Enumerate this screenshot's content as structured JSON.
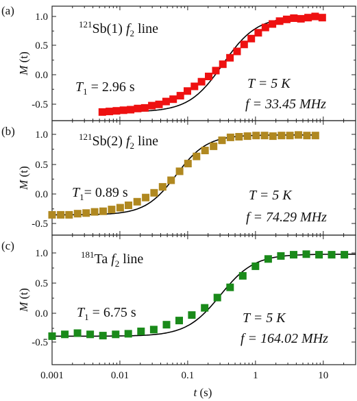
{
  "figure": {
    "xlabel": {
      "italic": "t",
      "rest": " (s)"
    },
    "ylabel": {
      "italic": "M",
      "rest": " (t)"
    }
  },
  "chart_data": [
    {
      "type": "scatter",
      "panel": "(a)",
      "title": {
        "isotope_mass": "121",
        "text": "Sb(1) ",
        "f": "f",
        "sub": "2",
        "suffix": " line"
      },
      "x_scale": "log",
      "xlim": [
        0.001,
        30
      ],
      "ylim": [
        -0.75,
        1.2
      ],
      "yticks": [
        "1.0",
        "0.5",
        "0.0",
        "-0.5"
      ],
      "marker_color": "#ee1111",
      "fit_line": true,
      "annotations": {
        "T1": {
          "label": "T",
          "sub": "1",
          "value": " = 2.96 s"
        },
        "T": "T = 5 K",
        "f": "f = 33.45 MHz"
      },
      "series": [
        {
          "x": [
            0.0055,
            0.007,
            0.0089,
            0.0113,
            0.0144,
            0.0183,
            0.0233,
            0.0296,
            0.0377,
            0.048,
            0.061,
            0.078,
            0.099,
            0.126,
            0.16,
            0.204,
            0.26,
            0.33,
            0.42,
            0.535,
            0.68,
            0.866,
            1.1,
            1.4,
            1.78,
            2.27,
            2.89,
            3.68,
            4.68,
            5.96,
            7.58,
            9.65
          ],
          "y": [
            -0.64,
            -0.63,
            -0.62,
            -0.61,
            -0.6,
            -0.58,
            -0.57,
            -0.53,
            -0.51,
            -0.46,
            -0.42,
            -0.36,
            -0.28,
            -0.2,
            -0.12,
            -0.03,
            0.07,
            0.18,
            0.29,
            0.4,
            0.52,
            0.62,
            0.72,
            0.81,
            0.87,
            0.92,
            0.95,
            0.97,
            0.96,
            0.98,
            1.0,
            0.98
          ]
        }
      ]
    },
    {
      "type": "scatter",
      "panel": "(b)",
      "title": {
        "isotope_mass": "121",
        "text": "Sb(2) ",
        "f": "f",
        "sub": "2",
        "suffix": " line"
      },
      "x_scale": "log",
      "xlim": [
        0.001,
        30
      ],
      "ylim": [
        -0.55,
        1.2
      ],
      "yticks": [
        "1.0",
        "0.5",
        "0.0",
        "-0.5"
      ],
      "marker_color": "#b08820",
      "fit_line": true,
      "annotations": {
        "T1": {
          "label": "T",
          "sub": "1",
          "value": "= 0.89 s"
        },
        "T": "T = 5 K",
        "f": "f = 74.29 MHz"
      },
      "series": [
        {
          "x": [
            0.001,
            0.00134,
            0.00178,
            0.00238,
            0.00318,
            0.00424,
            0.00566,
            0.00755,
            0.0101,
            0.0134,
            0.018,
            0.024,
            0.032,
            0.0427,
            0.057,
            0.076,
            0.101,
            0.135,
            0.18,
            0.241,
            0.321,
            0.428,
            0.572,
            0.763,
            1.02,
            1.36,
            1.81,
            2.42,
            3.22,
            4.3,
            5.74,
            7.66
          ],
          "y": [
            -0.35,
            -0.35,
            -0.35,
            -0.33,
            -0.32,
            -0.3,
            -0.29,
            -0.26,
            -0.23,
            -0.19,
            -0.13,
            -0.06,
            0.02,
            0.12,
            0.23,
            0.38,
            0.51,
            0.63,
            0.73,
            0.8,
            0.9,
            0.95,
            0.96,
            0.97,
            0.98,
            0.98,
            0.97,
            0.98,
            0.98,
            0.99,
            0.98,
            0.98
          ]
        }
      ]
    },
    {
      "type": "scatter",
      "panel": "(c)",
      "title": {
        "isotope_mass": "181",
        "text": "Ta ",
        "f": "f",
        "sub": "2",
        "suffix": " line"
      },
      "x_scale": "log",
      "xlim": [
        0.001,
        30
      ],
      "ylim": [
        -0.6,
        1.2
      ],
      "yticks": [
        "1.0",
        "0.5",
        "0.0",
        "-0.5"
      ],
      "marker_color": "#1a8a1a",
      "fit_line": true,
      "annotations": {
        "T1": {
          "label": "T",
          "sub": "1",
          "value": " = 6.75 s"
        },
        "T": "T = 5 K",
        "f": "f = 164.02 MHz"
      },
      "series": [
        {
          "x": [
            0.001,
            0.00154,
            0.00237,
            0.00365,
            0.00562,
            0.00866,
            0.0133,
            0.0205,
            0.0316,
            0.0487,
            0.075,
            0.115,
            0.178,
            0.274,
            0.422,
            0.649,
            1.0,
            1.54,
            2.37,
            3.65,
            5.62,
            8.66,
            13.3,
            20.5
          ],
          "y": [
            -0.38,
            -0.35,
            -0.33,
            -0.35,
            -0.37,
            -0.35,
            -0.34,
            -0.3,
            -0.27,
            -0.19,
            -0.12,
            -0.03,
            0.09,
            0.26,
            0.43,
            0.62,
            0.78,
            0.9,
            0.95,
            0.97,
            0.98,
            0.97,
            0.97,
            0.97
          ]
        }
      ]
    }
  ],
  "shared_x_axis": {
    "tick_values": [
      0.001,
      0.01,
      0.1,
      1,
      10
    ],
    "tick_labels": [
      "0.001",
      "0.01",
      "0.1",
      "1",
      "10"
    ]
  }
}
